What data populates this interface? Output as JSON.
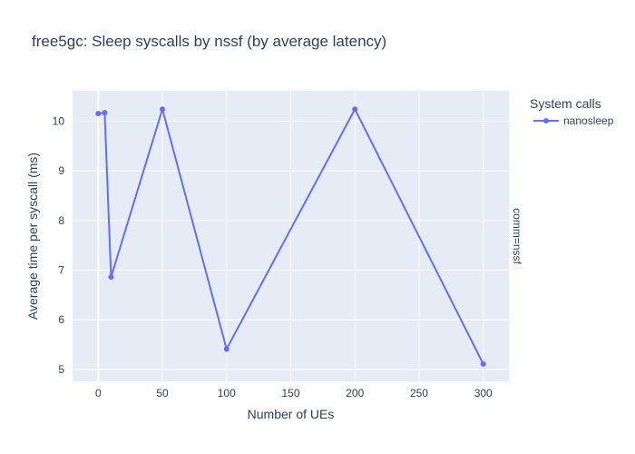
{
  "colors": {
    "plot_bg": "#e5ecf6",
    "grid": "#ffffff",
    "series": "#636efa",
    "text": "#2a3f5f"
  },
  "chart_data": {
    "type": "line",
    "title": "free5gc: Sleep syscalls by nssf (by average latency)",
    "xlabel": "Number of UEs",
    "ylabel": "Average time per syscall (ms)",
    "facet_label": "comm=nssf",
    "legend_title": "System calls",
    "legend_position": "top-right",
    "grid": true,
    "xlim": [
      -20,
      320
    ],
    "ylim": [
      4.76,
      10.61
    ],
    "x_ticks": [
      0,
      50,
      100,
      150,
      200,
      250,
      300
    ],
    "y_ticks": [
      5,
      6,
      7,
      8,
      9,
      10
    ],
    "series": [
      {
        "name": "nanosleep",
        "x": [
          0,
          5,
          10,
          50,
          100,
          200,
          300
        ],
        "y": [
          10.15,
          10.17,
          6.86,
          10.24,
          5.41,
          10.24,
          5.11
        ]
      }
    ]
  }
}
